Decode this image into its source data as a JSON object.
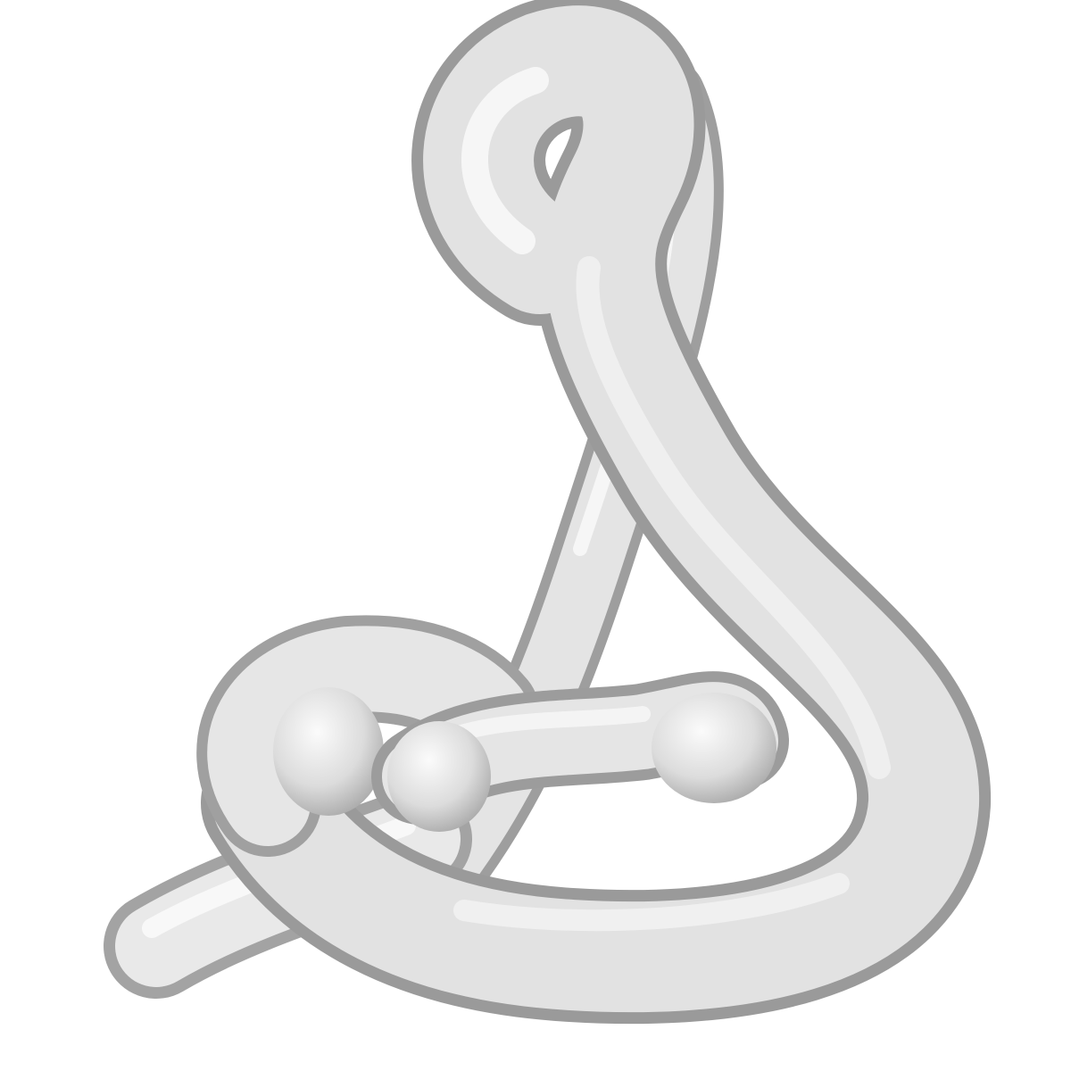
{
  "scene": {
    "subject": "knotted-tube",
    "background_color": "#ffffff",
    "tube_colors": {
      "light": "#ffffff",
      "mid": "#e6e6e6",
      "dark": "#a9a9a9",
      "shadow": "#8e8e8e"
    }
  }
}
